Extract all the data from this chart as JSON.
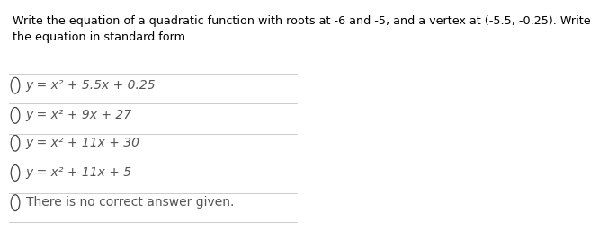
{
  "question": "Write the equation of a quadratic function with roots at -6 and -5, and a vertex at (-5.5, -0.25). Write\nthe equation in standard form.",
  "options": [
    "y = x² + 5.5x + 0.25",
    "y = x² + 9x + 27",
    "y = x² + 11x + 30",
    "y = x² + 11x + 5",
    "There is no correct answer given."
  ],
  "bg_color": "#ffffff",
  "text_color": "#000000",
  "option_color": "#555555",
  "question_fontsize": 9.2,
  "option_fontsize": 10.0,
  "line_color": "#cccccc"
}
